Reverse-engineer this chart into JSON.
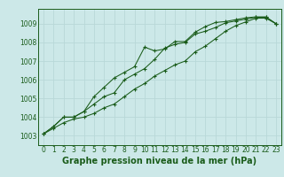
{
  "background_color": "#cce8e8",
  "plot_bg_color": "#cce8e8",
  "line_color": "#1a5c1a",
  "grid_color": "#b8d8d8",
  "xlabel": "Graphe pression niveau de la mer (hPa)",
  "xlabel_fontsize": 7,
  "tick_fontsize": 5.5,
  "xlim": [
    -0.5,
    23.5
  ],
  "ylim": [
    1002.5,
    1009.8
  ],
  "yticks": [
    1003,
    1004,
    1005,
    1006,
    1007,
    1008,
    1009
  ],
  "xticks": [
    0,
    1,
    2,
    3,
    4,
    5,
    6,
    7,
    8,
    9,
    10,
    11,
    12,
    13,
    14,
    15,
    16,
    17,
    18,
    19,
    20,
    21,
    22,
    23
  ],
  "series1": [
    1003.1,
    1003.4,
    1003.7,
    1003.9,
    1004.0,
    1004.2,
    1004.5,
    1004.7,
    1005.1,
    1005.5,
    1005.8,
    1006.2,
    1006.5,
    1006.8,
    1007.0,
    1007.5,
    1007.8,
    1008.2,
    1008.6,
    1008.9,
    1009.1,
    1009.3,
    1009.3,
    1009.0
  ],
  "series2": [
    1003.1,
    1003.5,
    1004.0,
    1004.0,
    1004.3,
    1004.7,
    1005.1,
    1005.3,
    1006.0,
    1006.3,
    1006.6,
    1007.1,
    1007.7,
    1007.9,
    1008.0,
    1008.45,
    1008.6,
    1008.8,
    1009.05,
    1009.15,
    1009.25,
    1009.35,
    1009.35,
    1009.0
  ],
  "series3": [
    1003.1,
    1003.5,
    1004.0,
    1004.0,
    1004.3,
    1005.1,
    1005.6,
    1006.1,
    1006.4,
    1006.7,
    1007.75,
    1007.55,
    1007.65,
    1008.05,
    1008.05,
    1008.55,
    1008.85,
    1009.07,
    1009.12,
    1009.22,
    1009.32,
    1009.37,
    1009.37,
    1009.0
  ]
}
